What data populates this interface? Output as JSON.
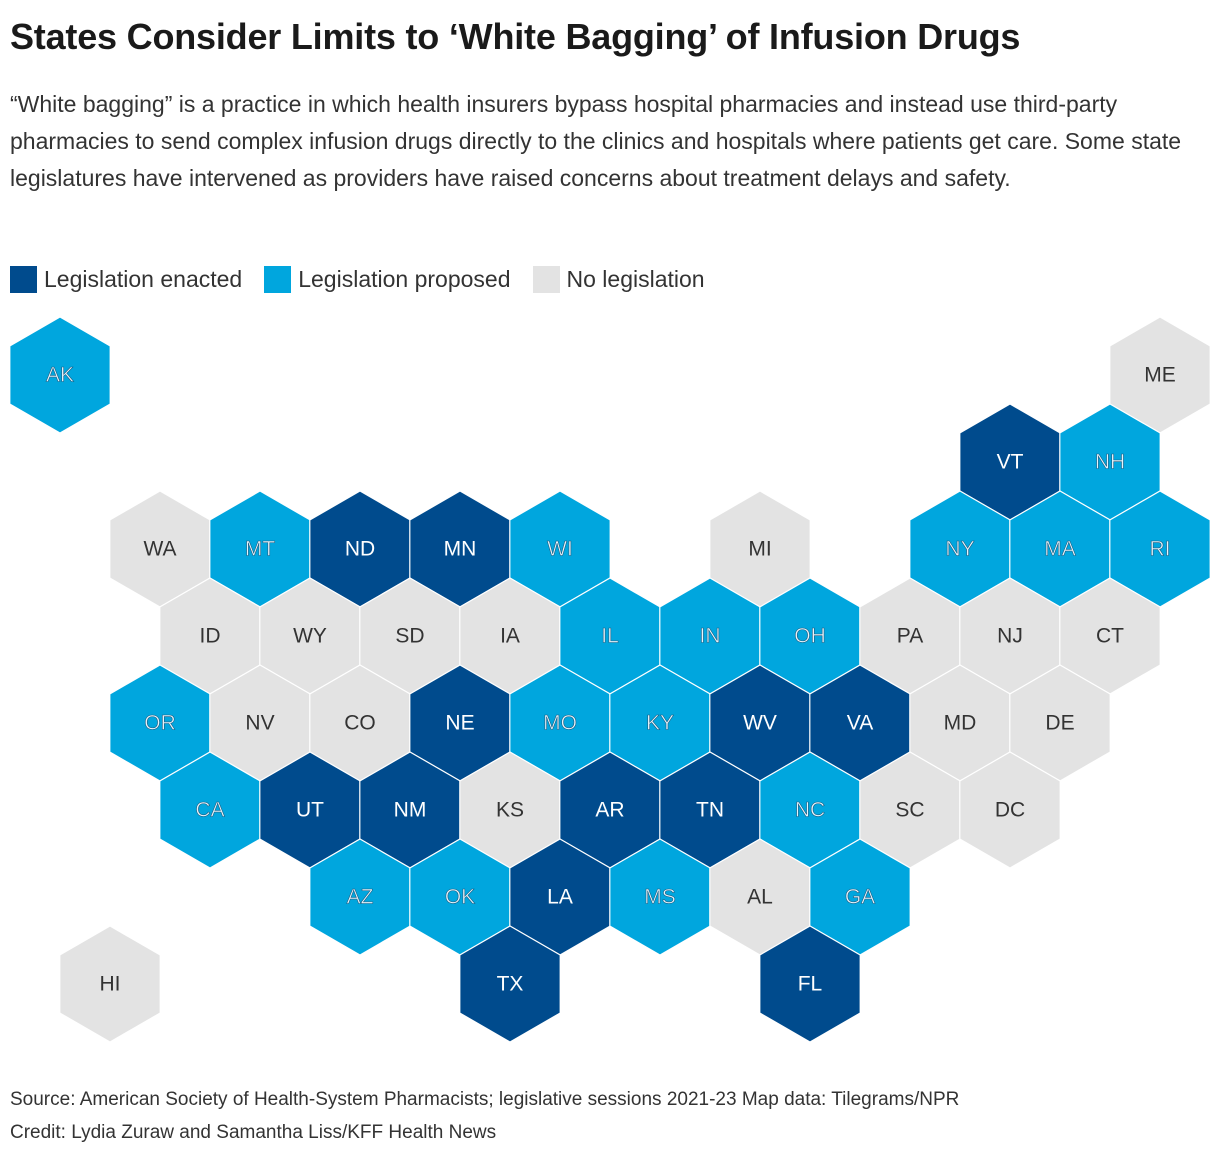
{
  "title": "States Consider Limits to ‘White Bagging’ of Infusion Drugs",
  "subtitle": "“White bagging” is a practice in which health insurers bypass hospital pharmacies and instead use third-party pharmacies to send complex infusion drugs directly to the clinics and hospitals where patients get care. Some state legislatures have intervened as providers have raised concerns about treatment delays and safety.",
  "legend": [
    {
      "key": "enacted",
      "label": "Legislation enacted",
      "color": "#004b8d"
    },
    {
      "key": "proposed",
      "label": "Legislation proposed",
      "color": "#00a6de"
    },
    {
      "key": "none",
      "label": "No legislation",
      "color": "#e3e3e3"
    }
  ],
  "map_data": {
    "type": "hex-tile-map",
    "states": [
      {
        "abbr": "AK",
        "status": "proposed",
        "row": 0,
        "col": 0
      },
      {
        "abbr": "ME",
        "status": "none",
        "row": 0,
        "col": 11
      },
      {
        "abbr": "VT",
        "status": "enacted",
        "row": 1,
        "col": 9.5
      },
      {
        "abbr": "NH",
        "status": "proposed",
        "row": 1,
        "col": 10.5
      },
      {
        "abbr": "WA",
        "status": "none",
        "row": 2,
        "col": 1
      },
      {
        "abbr": "MT",
        "status": "proposed",
        "row": 2,
        "col": 2
      },
      {
        "abbr": "ND",
        "status": "enacted",
        "row": 2,
        "col": 3
      },
      {
        "abbr": "MN",
        "status": "enacted",
        "row": 2,
        "col": 4
      },
      {
        "abbr": "WI",
        "status": "proposed",
        "row": 2,
        "col": 5
      },
      {
        "abbr": "MI",
        "status": "none",
        "row": 2,
        "col": 7
      },
      {
        "abbr": "NY",
        "status": "proposed",
        "row": 2,
        "col": 9
      },
      {
        "abbr": "MA",
        "status": "proposed",
        "row": 2,
        "col": 10
      },
      {
        "abbr": "RI",
        "status": "proposed",
        "row": 2,
        "col": 11
      },
      {
        "abbr": "ID",
        "status": "none",
        "row": 3,
        "col": 1.5
      },
      {
        "abbr": "WY",
        "status": "none",
        "row": 3,
        "col": 2.5
      },
      {
        "abbr": "SD",
        "status": "none",
        "row": 3,
        "col": 3.5
      },
      {
        "abbr": "IA",
        "status": "none",
        "row": 3,
        "col": 4.5
      },
      {
        "abbr": "IL",
        "status": "proposed",
        "row": 3,
        "col": 5.5
      },
      {
        "abbr": "IN",
        "status": "proposed",
        "row": 3,
        "col": 6.5
      },
      {
        "abbr": "OH",
        "status": "proposed",
        "row": 3,
        "col": 7.5
      },
      {
        "abbr": "PA",
        "status": "none",
        "row": 3,
        "col": 8.5
      },
      {
        "abbr": "NJ",
        "status": "none",
        "row": 3,
        "col": 9.5
      },
      {
        "abbr": "CT",
        "status": "none",
        "row": 3,
        "col": 10.5
      },
      {
        "abbr": "OR",
        "status": "proposed",
        "row": 4,
        "col": 1
      },
      {
        "abbr": "NV",
        "status": "none",
        "row": 4,
        "col": 2
      },
      {
        "abbr": "CO",
        "status": "none",
        "row": 4,
        "col": 3
      },
      {
        "abbr": "NE",
        "status": "enacted",
        "row": 4,
        "col": 4
      },
      {
        "abbr": "MO",
        "status": "proposed",
        "row": 4,
        "col": 5
      },
      {
        "abbr": "KY",
        "status": "proposed",
        "row": 4,
        "col": 6
      },
      {
        "abbr": "WV",
        "status": "enacted",
        "row": 4,
        "col": 7
      },
      {
        "abbr": "VA",
        "status": "enacted",
        "row": 4,
        "col": 8
      },
      {
        "abbr": "MD",
        "status": "none",
        "row": 4,
        "col": 9
      },
      {
        "abbr": "DE",
        "status": "none",
        "row": 4,
        "col": 10
      },
      {
        "abbr": "CA",
        "status": "proposed",
        "row": 5,
        "col": 1.5
      },
      {
        "abbr": "UT",
        "status": "enacted",
        "row": 5,
        "col": 2.5
      },
      {
        "abbr": "NM",
        "status": "enacted",
        "row": 5,
        "col": 3.5
      },
      {
        "abbr": "KS",
        "status": "none",
        "row": 5,
        "col": 4.5
      },
      {
        "abbr": "AR",
        "status": "enacted",
        "row": 5,
        "col": 5.5
      },
      {
        "abbr": "TN",
        "status": "enacted",
        "row": 5,
        "col": 6.5
      },
      {
        "abbr": "NC",
        "status": "proposed",
        "row": 5,
        "col": 7.5
      },
      {
        "abbr": "SC",
        "status": "none",
        "row": 5,
        "col": 8.5
      },
      {
        "abbr": "DC",
        "status": "none",
        "row": 5,
        "col": 9.5
      },
      {
        "abbr": "AZ",
        "status": "proposed",
        "row": 6,
        "col": 3
      },
      {
        "abbr": "OK",
        "status": "proposed",
        "row": 6,
        "col": 4
      },
      {
        "abbr": "LA",
        "status": "enacted",
        "row": 6,
        "col": 5
      },
      {
        "abbr": "MS",
        "status": "proposed",
        "row": 6,
        "col": 6
      },
      {
        "abbr": "AL",
        "status": "none",
        "row": 6,
        "col": 7
      },
      {
        "abbr": "GA",
        "status": "proposed",
        "row": 6,
        "col": 8
      },
      {
        "abbr": "HI",
        "status": "none",
        "row": 7,
        "col": 0.5
      },
      {
        "abbr": "TX",
        "status": "enacted",
        "row": 7,
        "col": 4.5
      },
      {
        "abbr": "FL",
        "status": "enacted",
        "row": 7,
        "col": 7.5
      }
    ]
  },
  "source": "Source: American Society of Health-System Pharmacists; legislative sessions 2021-23  Map data: Tilegrams/NPR",
  "credit": "Credit: Lydia Zuraw and Samantha Liss/KFF Health News"
}
